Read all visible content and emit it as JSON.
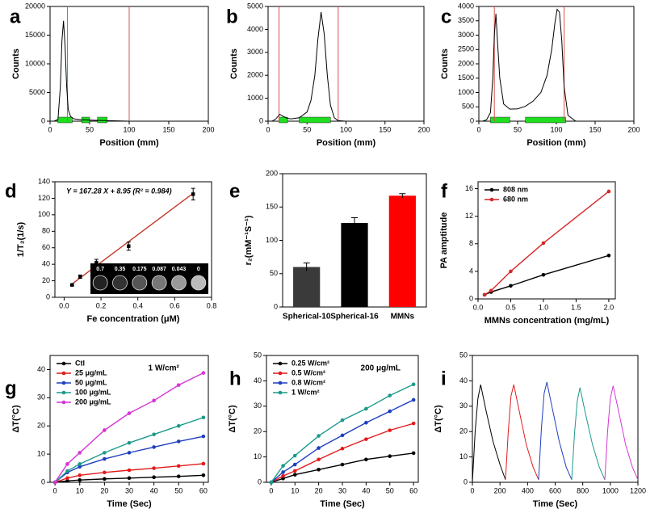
{
  "chart_data": [
    {
      "type": "line",
      "panel_label": "a",
      "xlabel": "Position (mm)",
      "ylabel": "Counts",
      "xlim": [
        0,
        200
      ],
      "xticks": [
        0,
        50,
        100,
        150,
        200
      ],
      "ylim": [
        0,
        20000
      ],
      "yticks": [
        0,
        5000,
        10000,
        15000,
        20000
      ],
      "x": [
        5,
        10,
        13,
        15,
        17,
        19,
        21,
        23,
        26,
        30,
        40,
        50,
        70,
        100
      ],
      "series": [
        {
          "color": "#000000",
          "values": [
            0,
            300,
            6000,
            14000,
            17500,
            13000,
            6000,
            2000,
            800,
            400,
            250,
            200,
            100,
            0
          ]
        }
      ],
      "cursors": [
        22,
        100
      ],
      "cursor_color": "#d9534f",
      "gates": [
        [
          10,
          28
        ],
        [
          40,
          50
        ],
        [
          60,
          72
        ]
      ],
      "gate_color": "#22dd22"
    },
    {
      "type": "line",
      "panel_label": "b",
      "xlabel": "Position (mm)",
      "ylabel": "Counts",
      "xlim": [
        0,
        200
      ],
      "xticks": [
        0,
        50,
        100,
        150,
        200
      ],
      "ylim": [
        0,
        5000
      ],
      "yticks": [
        0,
        1000,
        2000,
        3000,
        4000,
        5000
      ],
      "x": [
        5,
        10,
        15,
        20,
        25,
        30,
        40,
        50,
        55,
        60,
        64,
        68,
        72,
        76,
        80,
        85,
        90,
        100
      ],
      "series": [
        {
          "color": "#000000",
          "values": [
            0,
            100,
            300,
            200,
            120,
            100,
            150,
            400,
            900,
            2000,
            3600,
            4750,
            3800,
            2000,
            700,
            150,
            20,
            0
          ]
        }
      ],
      "cursors": [
        14,
        90
      ],
      "cursor_color": "#d9534f",
      "gates": [
        [
          14,
          25
        ],
        [
          40,
          80
        ]
      ],
      "gate_color": "#22dd22"
    },
    {
      "type": "line",
      "panel_label": "c",
      "xlabel": "Position (mm)",
      "ylabel": "Counts",
      "xlim": [
        0,
        200
      ],
      "xticks": [
        0,
        50,
        100,
        150,
        200
      ],
      "ylim": [
        0,
        4000
      ],
      "yticks": [
        0,
        500,
        1000,
        1500,
        2000,
        2500,
        3000,
        3500,
        4000
      ],
      "x": [
        5,
        10,
        15,
        18,
        20,
        22,
        24,
        27,
        32,
        40,
        50,
        60,
        70,
        80,
        88,
        94,
        98,
        101,
        104,
        107,
        110,
        115,
        125
      ],
      "series": [
        {
          "color": "#000000",
          "values": [
            0,
            50,
            300,
            1500,
            3000,
            3750,
            2800,
            1500,
            600,
            420,
            430,
            520,
            700,
            1000,
            1600,
            2500,
            3400,
            3900,
            3800,
            2800,
            1200,
            200,
            0
          ]
        }
      ],
      "cursors": [
        20,
        110
      ],
      "cursor_color": "#d9534f",
      "gates": [
        [
          15,
          40
        ],
        [
          60,
          112
        ]
      ],
      "gate_color": "#22dd22"
    },
    {
      "type": "scatter",
      "panel_label": "d",
      "xlabel": "Fe concentration (μM)",
      "ylabel": "1/T₂(1/s)",
      "xlim": [
        -0.05,
        0.8
      ],
      "xticks": [
        {
          "value": 0,
          "label": "0.0"
        },
        0.2,
        0.4,
        0.6,
        0.8
      ],
      "ylim": [
        0,
        140
      ],
      "yticks": [
        0,
        20,
        40,
        60,
        80,
        100,
        120,
        140
      ],
      "x": [
        0.043,
        0.087,
        0.175,
        0.35,
        0.7
      ],
      "values": [
        15,
        25,
        42,
        62,
        125
      ],
      "errors": [
        1,
        2,
        4,
        5,
        7
      ],
      "color": "#000000",
      "fit": {
        "slope": 167.28,
        "intercept": 8.95,
        "color": "#c0392b"
      },
      "fit_label": "Y = 167.28 X + 8.95 (R² = 0.984)",
      "inset_labels": [
        "0.7",
        "0.35",
        "0.175",
        "0.087",
        "0.043",
        "0"
      ]
    },
    {
      "type": "bar",
      "panel_label": "e",
      "ylabel": "r₂(mM⁻¹S⁻¹)",
      "categories": [
        "Spherical-10",
        "Spherical-16",
        "MMNs"
      ],
      "values": [
        60,
        126,
        167
      ],
      "errors": [
        6,
        8,
        3
      ],
      "colors": [
        "#3a3a3a",
        "#000000",
        "#ff0000"
      ],
      "ylim": [
        0,
        200
      ],
      "yticks": [
        0,
        50,
        100,
        150,
        200
      ]
    },
    {
      "type": "line",
      "panel_label": "f",
      "xlabel": "MMNs concentration (mg/mL)",
      "ylabel": "PA amptitude",
      "xlim": [
        0,
        2.1
      ],
      "xticks": [
        {
          "value": 0,
          "label": "0.0"
        },
        0.5,
        {
          "value": 1,
          "label": "1.0"
        },
        1.5,
        {
          "value": 2,
          "label": "2.0"
        }
      ],
      "ylim": [
        0,
        17
      ],
      "yticks": [
        0,
        4,
        8,
        12,
        16
      ],
      "markers": true,
      "legend": "upper left",
      "x": [
        0.1,
        0.2,
        0.5,
        1.0,
        2.0
      ],
      "series": [
        {
          "name": "808 nm",
          "color": "#000000",
          "values": [
            0.6,
            1.0,
            1.9,
            3.5,
            6.3
          ]
        },
        {
          "name": "680 nm",
          "color": "#d62728",
          "values": [
            0.6,
            1.2,
            4.0,
            8.1,
            15.6
          ]
        }
      ]
    },
    {
      "type": "line",
      "panel_label": "g",
      "xlabel": "Time (Sec)",
      "ylabel": "ΔT(°C)",
      "annotation": "1 W/cm²",
      "xlim": [
        -2,
        62
      ],
      "xticks": [
        0,
        10,
        20,
        30,
        40,
        50,
        60
      ],
      "ylim": [
        0,
        45
      ],
      "yticks": [
        0,
        10,
        20,
        30,
        40
      ],
      "markers": true,
      "legend": "upper left",
      "x": [
        0,
        5,
        10,
        20,
        30,
        40,
        50,
        60
      ],
      "series": [
        {
          "name": "Ctl",
          "color": "#000000",
          "values": [
            0,
            0.5,
            0.8,
            1.2,
            1.5,
            1.8,
            2.1,
            2.5
          ]
        },
        {
          "name": "25 μg/mL",
          "color": "#e31a1c",
          "values": [
            0,
            1.5,
            2.5,
            3.5,
            4.3,
            5.0,
            5.8,
            6.6
          ]
        },
        {
          "name": "50 μg/mL",
          "color": "#1f3fbf",
          "values": [
            0,
            3.5,
            5.5,
            8.3,
            10.5,
            12.5,
            14.5,
            16.3
          ]
        },
        {
          "name": "100 μg/mL",
          "color": "#1a9a8a",
          "values": [
            0,
            4,
            6.5,
            10.5,
            14,
            17,
            20,
            23
          ]
        },
        {
          "name": "200 μg/mL",
          "color": "#d633d6",
          "values": [
            0,
            6.5,
            10.5,
            18.5,
            24.5,
            29,
            34.5,
            38.8
          ]
        }
      ]
    },
    {
      "type": "line",
      "panel_label": "h",
      "xlabel": "Time (Sec)",
      "ylabel": "ΔT(°C)",
      "annotation": "200 μg/mL",
      "xlim": [
        -2,
        62
      ],
      "xticks": [
        0,
        10,
        20,
        30,
        40,
        50,
        60
      ],
      "ylim": [
        0,
        50
      ],
      "yticks": [
        0,
        10,
        20,
        30,
        40,
        50
      ],
      "markers": true,
      "legend": "upper left",
      "x": [
        0,
        5,
        10,
        20,
        30,
        40,
        50,
        60
      ],
      "series": [
        {
          "name": "0.25 W/cm²",
          "color": "#000000",
          "values": [
            0,
            1.5,
            3,
            5,
            7,
            9,
            10.3,
            11.5
          ]
        },
        {
          "name": "0.5 W/cm²",
          "color": "#e31a1c",
          "values": [
            0,
            2.5,
            4.5,
            9,
            13.3,
            17,
            20.5,
            23.2
          ]
        },
        {
          "name": "0.8 W/cm²",
          "color": "#1f3fbf",
          "values": [
            0,
            4,
            7,
            13.5,
            18.5,
            23.5,
            28,
            32.5
          ]
        },
        {
          "name": "1 W/cm²",
          "color": "#1a9a8a",
          "values": [
            0,
            6.5,
            10.5,
            18.3,
            24.5,
            29,
            34.2,
            38.6
          ]
        }
      ]
    },
    {
      "type": "line",
      "panel_label": "i",
      "xlabel": "Time (Sec)",
      "ylabel": "ΔT(°C)",
      "xlim": [
        0,
        1200
      ],
      "xticks": [
        0,
        200,
        400,
        600,
        800,
        1000,
        1200
      ],
      "ylim": [
        0,
        50
      ],
      "yticks": [
        0,
        10,
        20,
        30,
        40,
        50
      ],
      "series": [
        {
          "color": "#000000",
          "x": [
            0,
            20,
            40,
            60,
            100,
            150,
            200,
            240
          ],
          "values": [
            0,
            20,
            33,
            38.5,
            28,
            16,
            7,
            1
          ]
        },
        {
          "color": "#e31a1c",
          "x": [
            240,
            260,
            280,
            300,
            340,
            390,
            440,
            480
          ],
          "values": [
            1,
            20,
            34,
            38.5,
            28,
            15,
            6,
            1
          ]
        },
        {
          "color": "#1f3fbf",
          "x": [
            480,
            500,
            520,
            540,
            580,
            630,
            680,
            720
          ],
          "values": [
            1,
            21,
            35,
            39.5,
            29,
            16,
            6,
            1
          ]
        },
        {
          "color": "#1a9a8a",
          "x": [
            720,
            740,
            760,
            780,
            820,
            870,
            920,
            960
          ],
          "values": [
            1,
            19,
            32,
            37.3,
            27,
            15,
            6,
            1
          ]
        },
        {
          "color": "#d633d6",
          "x": [
            960,
            980,
            1000,
            1020,
            1060,
            1110,
            1160,
            1200
          ],
          "values": [
            1,
            20,
            33,
            38,
            28,
            15,
            6,
            1
          ]
        }
      ]
    }
  ]
}
